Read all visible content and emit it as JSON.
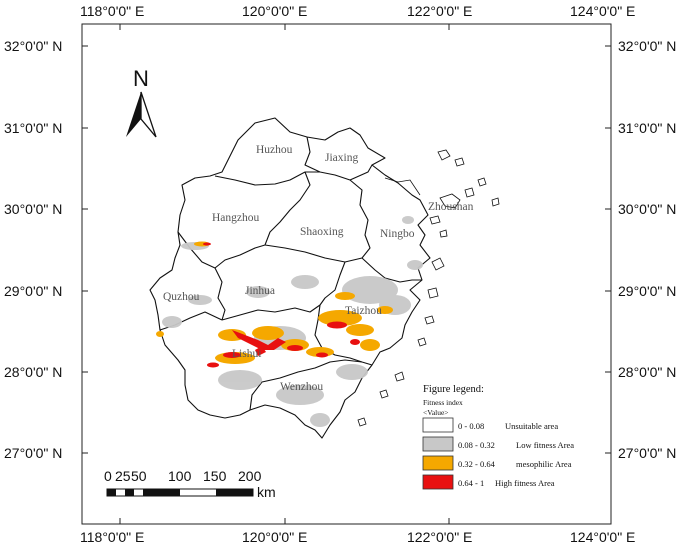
{
  "coordinates": {
    "top_labels": [
      "118°0'0\" E",
      "120°0'0\" E",
      "122°0'0\" E",
      "124°0'0\" E"
    ],
    "bottom_labels": [
      "118°0'0\" E",
      "120°0'0\" E",
      "122°0'0\" E",
      "124°0'0\" E"
    ],
    "left_labels": [
      "32°0'0\" N",
      "31°0'0\" N",
      "30°0'0\" N",
      "29°0'0\" N",
      "28°0'0\" N",
      "27°0'0\" N"
    ],
    "right_labels": [
      "32°0'0\" N",
      "31°0'0\" N",
      "30°0'0\" N",
      "29°0'0\" N",
      "28°0'0\" N",
      "27°0'0\" N"
    ]
  },
  "north_arrow": {
    "label": "N"
  },
  "cities": [
    "Huzhou",
    "Jiaxing",
    "Hangzhou",
    "Shaoxing",
    "Ningbo",
    "Zhoushan",
    "Quzhou",
    "Jinhua",
    "Taizhou",
    "Lishui",
    "Wenzhou"
  ],
  "legend": {
    "title": "Figure legend:",
    "subtitle": "Fitness index",
    "value_label": "<Value>",
    "items": [
      {
        "range": "0 - 0.08",
        "label": "Unsuitable area",
        "color": "#ffffff"
      },
      {
        "range": "0.08 - 0.32",
        "label": "Low fitness Area",
        "color": "#c8c8c8"
      },
      {
        "range": "0.32 - 0.64",
        "label": "mesophilic Area",
        "color": "#f5a800"
      },
      {
        "range": "0.64 - 1",
        "label": "High fitness Area",
        "color": "#e81010"
      }
    ]
  },
  "scale_bar": {
    "ticks": [
      "0",
      "25",
      "50",
      "100",
      "150",
      "200"
    ],
    "unit": "km"
  }
}
